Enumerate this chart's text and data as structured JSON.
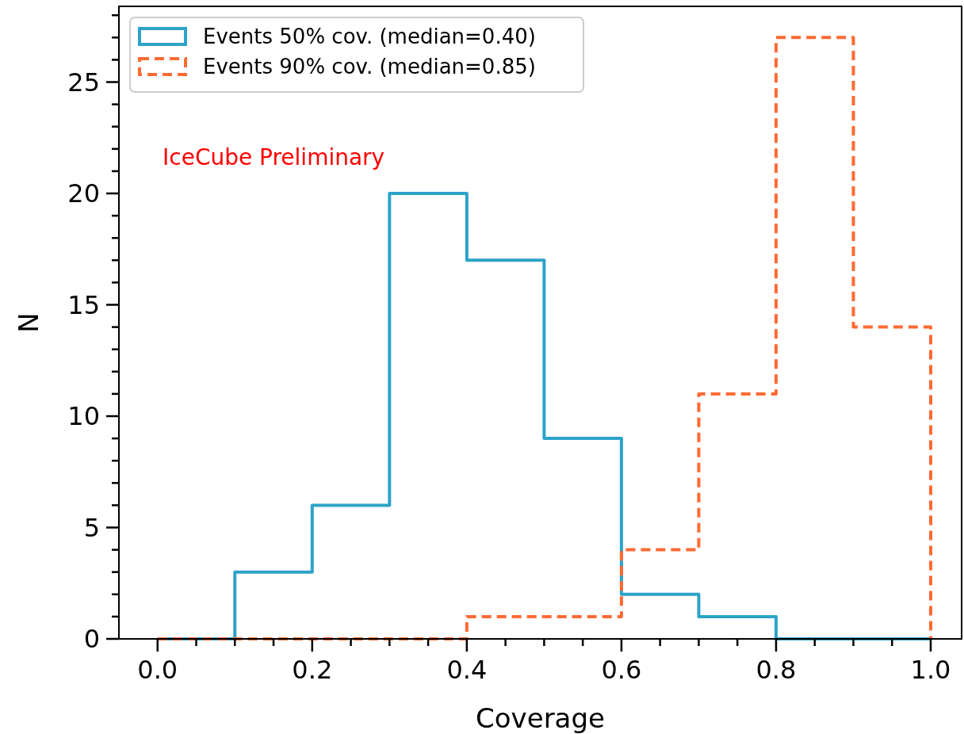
{
  "chart_data": {
    "type": "histogram",
    "xlabel": "Coverage",
    "ylabel": "N",
    "bins": [
      0,
      0.1,
      0.2,
      0.3,
      0.4,
      0.5,
      0.6,
      0.7,
      0.8,
      0.9,
      1.0
    ],
    "series": [
      {
        "name": "Events 50% cov. (median=0.40)",
        "color": "#2ca3c9",
        "line_style": "solid",
        "values": [
          0,
          3,
          6,
          20,
          17,
          9,
          2,
          1,
          0,
          0
        ]
      },
      {
        "name": "Events 90% cov. (median=0.85)",
        "color": "#ff6a33",
        "line_style": "dashed",
        "values": [
          0,
          0,
          0,
          0,
          1,
          1,
          4,
          11,
          27,
          14
        ]
      }
    ],
    "xlim": [
      -0.05,
      1.04
    ],
    "ylim": [
      0,
      28.4
    ],
    "xticks": [
      {
        "value": 0,
        "label": "0.0"
      },
      {
        "value": 0.05,
        "label": null
      },
      {
        "value": 0.1,
        "label": null
      },
      {
        "value": 0.15,
        "label": null
      },
      {
        "value": 0.2,
        "label": "0.2"
      },
      {
        "value": 0.25,
        "label": null
      },
      {
        "value": 0.3,
        "label": null
      },
      {
        "value": 0.35,
        "label": null
      },
      {
        "value": 0.4,
        "label": "0.4"
      },
      {
        "value": 0.45,
        "label": null
      },
      {
        "value": 0.5,
        "label": null
      },
      {
        "value": 0.55,
        "label": null
      },
      {
        "value": 0.6,
        "label": "0.6"
      },
      {
        "value": 0.65,
        "label": null
      },
      {
        "value": 0.7,
        "label": null
      },
      {
        "value": 0.75,
        "label": null
      },
      {
        "value": 0.8,
        "label": "0.8"
      },
      {
        "value": 0.85,
        "label": null
      },
      {
        "value": 0.9,
        "label": null
      },
      {
        "value": 0.95,
        "label": null
      },
      {
        "value": 1.0,
        "label": "1.0"
      }
    ],
    "yticks": [
      0,
      {
        "value": 1,
        "label": null
      },
      {
        "value": 2,
        "label": null
      },
      {
        "value": 3,
        "label": null
      },
      {
        "value": 4,
        "label": null
      },
      5,
      {
        "value": 6,
        "label": null
      },
      {
        "value": 7,
        "label": null
      },
      {
        "value": 8,
        "label": null
      },
      {
        "value": 9,
        "label": null
      },
      10,
      {
        "value": 11,
        "label": null
      },
      {
        "value": 12,
        "label": null
      },
      {
        "value": 13,
        "label": null
      },
      {
        "value": 14,
        "label": null
      },
      15,
      {
        "value": 16,
        "label": null
      },
      {
        "value": 17,
        "label": null
      },
      {
        "value": 18,
        "label": null
      },
      {
        "value": 19,
        "label": null
      },
      20,
      {
        "value": 21,
        "label": null
      },
      {
        "value": 22,
        "label": null
      },
      {
        "value": 23,
        "label": null
      },
      {
        "value": 24,
        "label": null
      },
      25,
      {
        "value": 26,
        "label": null
      },
      {
        "value": 27,
        "label": null
      },
      {
        "value": 28,
        "label": null
      }
    ],
    "grid": false,
    "legend": "top left",
    "annotations": [
      "IceCube Preliminary"
    ]
  }
}
